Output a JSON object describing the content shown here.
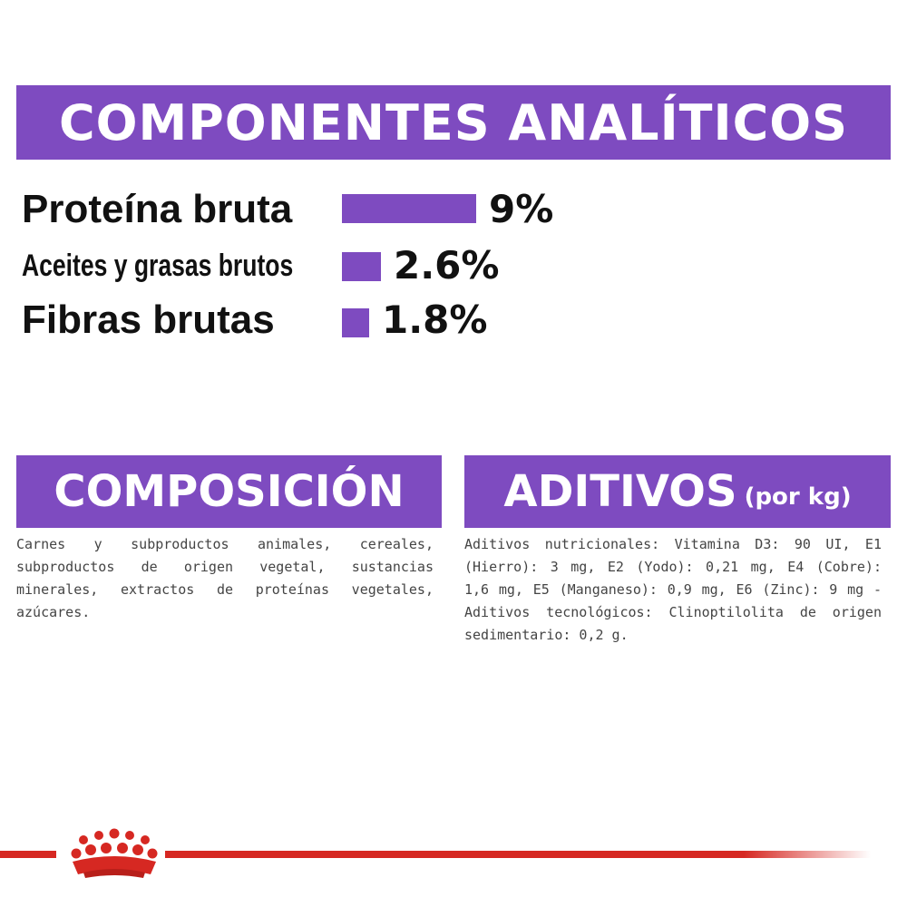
{
  "analytic": {
    "title": "COMPONENTES ANALÍTICOS",
    "accent_color": "#7e4bc0",
    "items": [
      {
        "label": "Proteína bruta",
        "value": "9%",
        "percent": 9
      },
      {
        "label": "Aceites y grasas brutos",
        "value": "2.6%",
        "percent": 2.6
      },
      {
        "label": "Fibras brutas",
        "value": "1.8%",
        "percent": 1.8
      }
    ]
  },
  "composition": {
    "title": "COMPOSICIÓN",
    "text": "Carnes y subproductos animales, cereales, subproductos de origen vegetal, sustancias minerales, extractos de proteínas vegetales, azúcares."
  },
  "additives": {
    "title": "ADITIVOS",
    "subtitle": "(por kg)",
    "text": "Aditivos nutricionales: Vitamina D3: 90 UI, E1 (Hierro): 3 mg, E2 (Yodo): 0,21 mg, E4 (Cobre): 1,6 mg, E5 (Manganeso): 0,9 mg, E6 (Zinc): 9 mg - Aditivos tecnológicos: Clinoptilolita de origen sedimentario: 0,2 g."
  },
  "footer": {
    "logo_icon": "crown-logo-icon",
    "brand_color": "#d62822"
  }
}
